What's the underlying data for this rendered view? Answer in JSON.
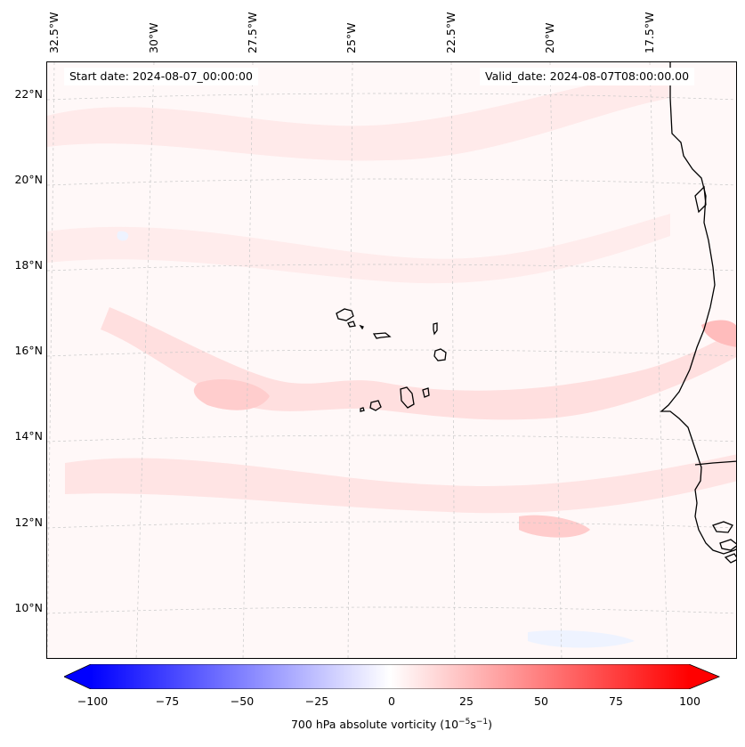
{
  "map": {
    "start_date_text": "Start date: 2024-08-07_00:00:00",
    "valid_date_text": "Valid_date: 2024-08-07T08:00:00.00",
    "longitude_labels": [
      "32.5°W",
      "30°W",
      "27.5°W",
      "25°W",
      "22.5°W",
      "20°W",
      "17.5°W"
    ],
    "latitude_labels": [
      "22°N",
      "20°N",
      "18°N",
      "16°N",
      "14°N",
      "12°N",
      "10°N"
    ],
    "region": "Cape Verde Islands and West African coast",
    "field_colors": {
      "background": "#fff8f8",
      "light_positive": "#ffe3e3",
      "negative": "#eef3ff",
      "coast": "#000000"
    }
  },
  "colorbar": {
    "label": "700 hPa absolute vorticity (10",
    "label_exp1": "−5",
    "label_mid": "s",
    "label_exp2": "−1",
    "label_end": ")",
    "tick_labels": [
      "−100",
      "−75",
      "−50",
      "−25",
      "0",
      "25",
      "50",
      "75",
      "100"
    ],
    "min": -100,
    "max": 100,
    "colormap": "bwr",
    "min_color": "#0000ff",
    "mid_color": "#ffffff",
    "max_color": "#ff0000"
  }
}
